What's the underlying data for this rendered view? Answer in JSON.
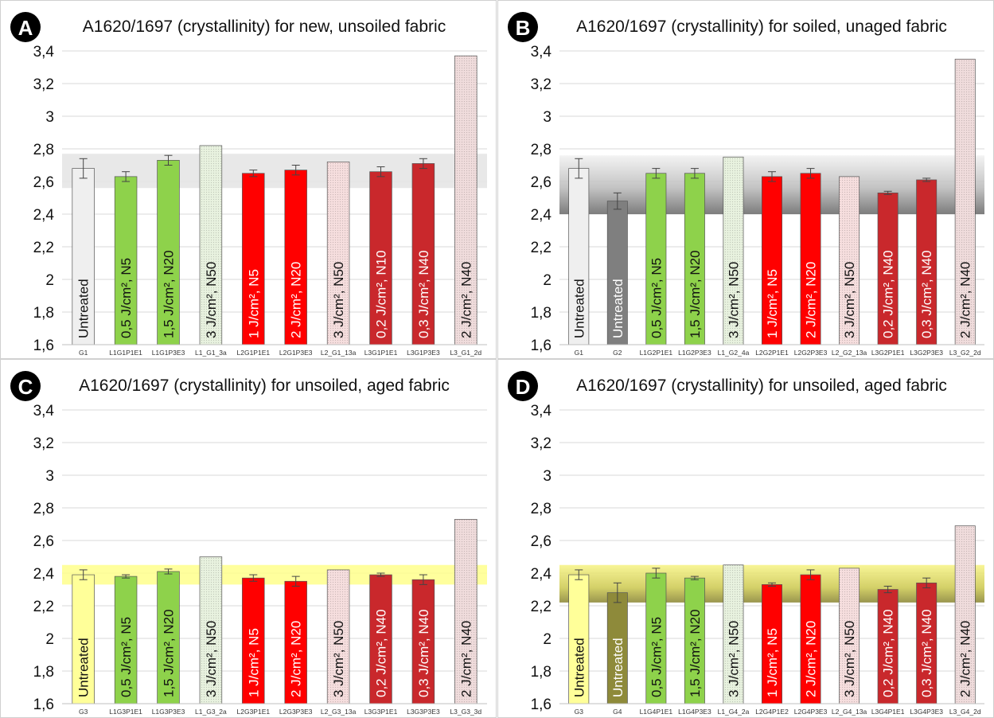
{
  "chart_data": [
    {
      "id": "A",
      "type": "bar",
      "title": "A1620/1697 (crystallinity) for new, unsoiled fabric",
      "ylim": [
        1.6,
        3.4
      ],
      "yticks": [
        "1,6",
        "1,8",
        "2",
        "2,2",
        "2,4",
        "2,6",
        "2,8",
        "3",
        "3,2",
        "3,4"
      ],
      "grid": true,
      "band": {
        "low": 2.56,
        "high": 2.77,
        "style": "gray-flat"
      },
      "categories": [
        "G1",
        "L1G1P1E1",
        "L1G1P3E3",
        "L1_G1_3a",
        "L2G1P1E1",
        "L2G1P3E3",
        "L2_G1_13a",
        "L3G1P1E1",
        "L3G1P3E3",
        "L3_G1_2d"
      ],
      "bar_labels": [
        "Untreated",
        "0,5 J/cm², N5",
        "1,5 J/cm², N20",
        "3 J/cm², N50",
        "1 J/cm², N5",
        "2 J/cm², N20",
        "3 J/cm², N50",
        "0,2 J/cm², N10",
        "0,3 J/cm², N40",
        "2 J/cm², N40"
      ],
      "values": [
        2.68,
        2.63,
        2.73,
        2.82,
        2.65,
        2.67,
        2.72,
        2.66,
        2.71,
        3.37
      ],
      "errors": [
        0.06,
        0.03,
        0.03,
        null,
        0.02,
        0.03,
        null,
        0.03,
        0.03,
        null
      ],
      "colors": [
        "#efefef",
        "#8ed24b",
        "#8ed24b",
        "#e8f2df",
        "#ff0000",
        "#ff0000",
        "#f6dede",
        "#c9282c",
        "#c9282c",
        "#f0dcdc"
      ]
    },
    {
      "id": "B",
      "type": "bar",
      "title": "A1620/1697 (crystallinity) for soiled, unaged fabric",
      "ylim": [
        1.6,
        3.4
      ],
      "yticks": [
        "1,6",
        "1,8",
        "2",
        "2,2",
        "2,4",
        "2,6",
        "2,8",
        "3",
        "3,2",
        "3,4"
      ],
      "grid": true,
      "band": {
        "low": 2.4,
        "high": 2.76,
        "style": "gray-gradient"
      },
      "categories": [
        "G1",
        "G2",
        "L1G2P1E1",
        "L1G2P3E3",
        "L1_G2_4a",
        "L2G2P1E1",
        "L2G2P3E3",
        "L2_G2_13a",
        "L3G2P1E1",
        "L3G2P3E3",
        "L3_G2_2d"
      ],
      "bar_labels": [
        "Untreated",
        "Untreated",
        "0,5 J/cm², N5",
        "1,5 J/cm², N20",
        "3 J/cm², N50",
        "1 J/cm², N5",
        "2 J/cm², N20",
        "3 J/cm², N50",
        "0,2 J/cm², N40",
        "0,3 J/cm², N40",
        "2 J/cm², N40"
      ],
      "values": [
        2.68,
        2.48,
        2.65,
        2.65,
        2.75,
        2.63,
        2.65,
        2.63,
        2.53,
        2.61,
        3.35
      ],
      "errors": [
        0.06,
        0.05,
        0.03,
        0.03,
        null,
        0.03,
        0.03,
        null,
        0.01,
        0.01,
        null
      ],
      "colors": [
        "#efefef",
        "#7f7f7f",
        "#8ed24b",
        "#8ed24b",
        "#e8f2df",
        "#ff0000",
        "#ff0000",
        "#f6dede",
        "#c9282c",
        "#c9282c",
        "#f0dcdc"
      ]
    },
    {
      "id": "C",
      "type": "bar",
      "title": "A1620/1697 (crystallinity) for unsoiled, aged fabric",
      "ylim": [
        1.6,
        3.4
      ],
      "yticks": [
        "1,6",
        "1,8",
        "2",
        "2,2",
        "2,4",
        "2,6",
        "2,8",
        "3",
        "3,2",
        "3,4"
      ],
      "grid": true,
      "band": {
        "low": 2.33,
        "high": 2.45,
        "style": "yellow-flat"
      },
      "categories": [
        "G3",
        "L1G3P1E1",
        "L1G3P3E3",
        "L1_G3_2a",
        "L2G3P1E1",
        "L2G3P3E3",
        "L2_G3_13a",
        "L3G3P1E1",
        "L3G3P3E3",
        "L3_G3_3d"
      ],
      "bar_labels": [
        "Untreated",
        "0,5 J/cm², N5",
        "1,5 J/cm², N20",
        "3 J/cm², N50",
        "1 J/cm², N5",
        "2 J/cm², N20",
        "3 J/cm², N50",
        "0,2 J/cm², N40",
        "0,3 J/cm², N40",
        "2 J/cm², N40"
      ],
      "values": [
        2.39,
        2.38,
        2.41,
        2.5,
        2.37,
        2.35,
        2.42,
        2.39,
        2.36,
        2.73
      ],
      "errors": [
        0.03,
        0.01,
        0.015,
        null,
        0.02,
        0.03,
        null,
        0.01,
        0.03,
        null
      ],
      "colors": [
        "#ffff99",
        "#8ed24b",
        "#8ed24b",
        "#e8f2df",
        "#ff0000",
        "#ff0000",
        "#f6dede",
        "#c9282c",
        "#c9282c",
        "#f0dcdc"
      ]
    },
    {
      "id": "D",
      "type": "bar",
      "title": "A1620/1697 (crystallinity) for unsoiled, aged fabric",
      "ylim": [
        1.6,
        3.4
      ],
      "yticks": [
        "1,6",
        "1,8",
        "2",
        "2,2",
        "2,4",
        "2,6",
        "2,8",
        "3",
        "3,2",
        "3,4"
      ],
      "grid": true,
      "band": {
        "low": 2.22,
        "high": 2.45,
        "style": "olive-gradient"
      },
      "categories": [
        "G3",
        "G4",
        "L1G4P1E1",
        "L1G4P3E3",
        "L1_G4_2a",
        "L2G4P1E2",
        "L2G4P3E3",
        "L2_G4_13a",
        "L3G4P1E1",
        "L3G4P3E3",
        "L3_G4_2d"
      ],
      "bar_labels": [
        "Untreated",
        "Untreated",
        "0,5 J/cm², N5",
        "1,5 J/cm², N20",
        "3 J/cm², N50",
        "1 J/cm², N5",
        "2 J/cm², N20",
        "3 J/cm², N50",
        "0,2 J/cm², N40",
        "0,3 J/cm², N40",
        "2 J/cm², N40"
      ],
      "values": [
        2.39,
        2.28,
        2.4,
        2.37,
        2.45,
        2.33,
        2.39,
        2.43,
        2.3,
        2.34,
        2.69
      ],
      "errors": [
        0.03,
        0.06,
        0.03,
        0.01,
        null,
        0.01,
        0.03,
        null,
        0.02,
        0.03,
        null
      ],
      "colors": [
        "#ffff99",
        "#8e8a3a",
        "#8ed24b",
        "#8ed24b",
        "#e8f2df",
        "#ff0000",
        "#ff0000",
        "#f6dede",
        "#c9282c",
        "#c9282c",
        "#f0dcdc"
      ]
    }
  ]
}
